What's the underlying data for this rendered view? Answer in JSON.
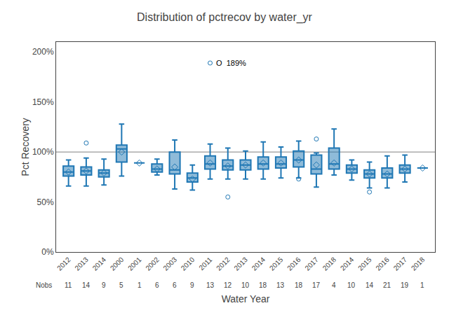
{
  "chart_data": {
    "type": "box",
    "title": "Distribution of pctrecov by water_yr",
    "x_label": "Water Year",
    "y_label": "Pct Recovery",
    "categories": [
      "2012",
      "2013",
      "2014",
      "2000",
      "2001",
      "2002",
      "2003",
      "2010",
      "2011",
      "2012",
      "2013",
      "2014",
      "2015",
      "2016",
      "2017",
      "2018",
      "2014",
      "2015",
      "2016",
      "2017",
      "2018"
    ],
    "q1": [
      76,
      77,
      75,
      90,
      89,
      80,
      78,
      70,
      83,
      82,
      82,
      83,
      84,
      85,
      78,
      83,
      79,
      74,
      74,
      79,
      84
    ],
    "median": [
      80,
      81,
      79,
      103,
      89,
      83,
      82,
      74,
      88,
      86,
      87,
      88,
      88,
      92,
      83,
      88,
      83,
      78,
      78,
      83,
      84
    ],
    "q3": [
      86,
      85,
      82,
      107,
      89,
      88,
      100,
      79,
      96,
      92,
      92,
      95,
      95,
      101,
      97,
      104,
      87,
      82,
      84,
      87,
      84
    ],
    "mean": [
      80,
      81,
      79,
      100,
      89,
      83,
      85,
      73,
      89,
      86,
      87,
      89,
      89,
      92,
      87,
      89,
      83,
      78,
      78,
      83,
      84
    ],
    "whislo": [
      66,
      66,
      67,
      76,
      89,
      77,
      63,
      62,
      73,
      73,
      73,
      73,
      74,
      74,
      65,
      77,
      72,
      64,
      64,
      70,
      84
    ],
    "whishi": [
      92,
      94,
      93,
      128,
      89,
      93,
      112,
      87,
      108,
      104,
      101,
      110,
      105,
      111,
      99,
      123,
      92,
      90,
      96,
      97,
      84
    ],
    "fliers": [
      [],
      [
        109
      ],
      [],
      [],
      [],
      [],
      [],
      [],
      [
        189
      ],
      [
        55
      ],
      [],
      [],
      [],
      [
        73
      ],
      [
        113
      ],
      [],
      [],
      [
        60
      ],
      [],
      [],
      []
    ],
    "nobs": [
      11,
      14,
      9,
      5,
      1,
      6,
      6,
      9,
      13,
      12,
      10,
      18,
      13,
      18,
      17,
      4,
      10,
      14,
      21,
      19,
      1
    ],
    "nobs_label": "Nobs",
    "reference_line": 100,
    "annotations": [
      {
        "text": "O  189%",
        "x": 9,
        "y": 189
      }
    ],
    "ylim": [
      0,
      210
    ],
    "yticks": [
      {
        "value": 0,
        "label": "0%"
      },
      {
        "value": 50,
        "label": "50%"
      },
      {
        "value": 100,
        "label": "100%"
      },
      {
        "value": 150,
        "label": "150%"
      },
      {
        "value": 200,
        "label": "200%"
      }
    ],
    "grid": false
  }
}
